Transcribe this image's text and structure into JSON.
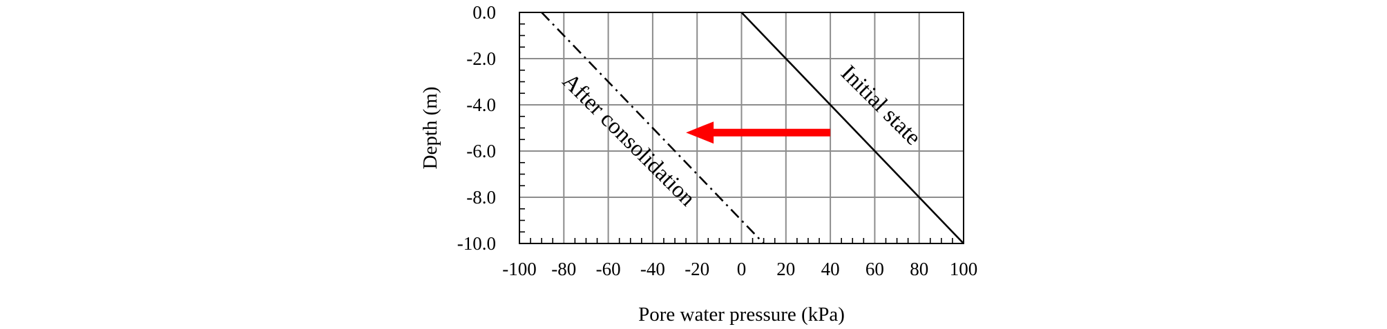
{
  "chart_data": {
    "type": "line",
    "xlabel": "Pore water pressure (kPa)",
    "ylabel": "Depth (m)",
    "xlim": [
      -100,
      100
    ],
    "ylim": [
      -10,
      0
    ],
    "x_ticks": [
      -100,
      -80,
      -60,
      -40,
      -20,
      0,
      20,
      40,
      60,
      80,
      100
    ],
    "x_tick_labels": [
      "-100",
      "-80",
      "-60",
      "-40",
      "-20",
      "0",
      "20",
      "40",
      "60",
      "80",
      "100"
    ],
    "y_ticks": [
      0,
      -2,
      -4,
      -6,
      -8,
      -10
    ],
    "y_tick_labels": [
      "0.0",
      "-2.0",
      "-4.0",
      "-6.0",
      "-8.0",
      "-10.0"
    ],
    "grid": true,
    "series": [
      {
        "name": "Initial state",
        "style": "solid",
        "color": "#000000",
        "points": [
          {
            "x": 0,
            "y": 0
          },
          {
            "x": 100,
            "y": -10
          }
        ]
      },
      {
        "name": "After consolidation",
        "style": "dash-dot",
        "color": "#000000",
        "points": [
          {
            "x": -90,
            "y": 0
          },
          {
            "x": 10,
            "y": -10
          }
        ]
      }
    ],
    "annotations": {
      "initial_label": "Initial state",
      "after_label": "After consolidation",
      "arrow": {
        "color": "#ff0000",
        "from": {
          "x": 40,
          "y": -5.2
        },
        "to": {
          "x": -25,
          "y": -5.2
        }
      }
    }
  }
}
